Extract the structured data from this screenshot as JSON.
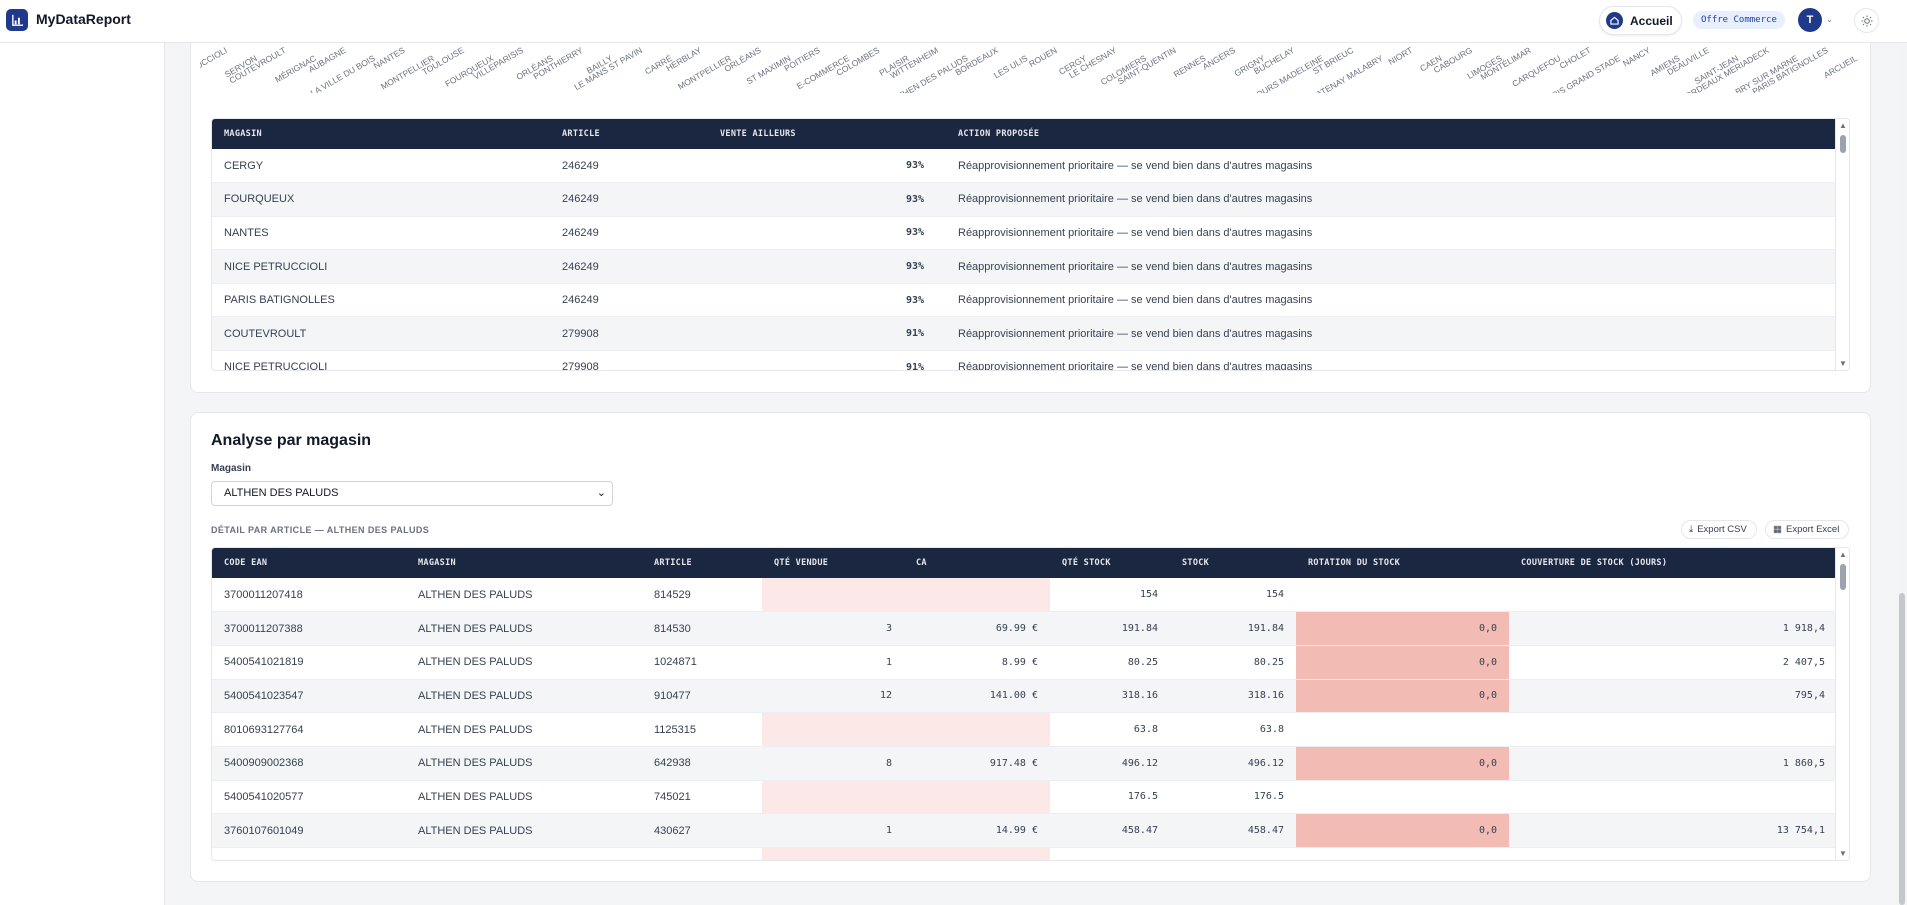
{
  "app": {
    "brand": "MyDataReport"
  },
  "header": {
    "home_label": "Accueil",
    "offer_label": "Offre Commerce",
    "avatar_initial": "T"
  },
  "chart_labels": [
    "NICE PETRUCCIOLI",
    "SERVON",
    "COUTEVROULT",
    "MÉRIGNAC",
    "AUBAGNE",
    "LA VILLE DU BOIS",
    "NANTES",
    "MONTPELLIER",
    "TOULOUSE",
    "FOURQUEUX",
    "VILLEPARISIS",
    "ORLÉANS",
    "PONTHIERRY",
    "BAILLY",
    "LE MANS ST PAVIN",
    "CARRÉ",
    "HERBLAY",
    "MONTPELLIER",
    "ORLÉANS",
    "ST MAXIMIN",
    "POITIERS",
    "E-COMMERCE",
    "COLOMBES",
    "PLAISIR",
    "WITTENHEIM",
    "ALTHEN DES PALUDS",
    "BORDEAUX",
    "LES ULIS",
    "ROUEN",
    "CERGY",
    "LE CHESNAY",
    "COLOMIERS",
    "SAINT-QUENTIN",
    "RENNES",
    "ANGERS",
    "GRIGNY",
    "BUCHELAY",
    "TOURS MADELEINE",
    "ST BRIEUC",
    "CHATENAY MALABRY",
    "NIORT",
    "CAEN",
    "CABOURG",
    "LIMOGES",
    "MONTÉLIMAR",
    "CARQUEFOU",
    "CHOLET",
    "PARIS GRAND STADE",
    "NANCY",
    "AMIENS",
    "DEAUVILLE",
    "SAINT-JEAN",
    "BORDEAUX MERIADECK",
    "BRY SUR MARNE",
    "PARIS BATIGNOLLES",
    "ARCUEIL"
  ],
  "suggestions": {
    "columns": [
      "Magasin",
      "Article",
      "Vente ailleurs",
      "Action proposée"
    ],
    "rows": [
      {
        "magasin": "CERGY",
        "article": "246249",
        "vente": "93%",
        "action": "Réapprovisionnement prioritaire — se vend bien dans d'autres magasins"
      },
      {
        "magasin": "FOURQUEUX",
        "article": "246249",
        "vente": "93%",
        "action": "Réapprovisionnement prioritaire — se vend bien dans d'autres magasins"
      },
      {
        "magasin": "NANTES",
        "article": "246249",
        "vente": "93%",
        "action": "Réapprovisionnement prioritaire — se vend bien dans d'autres magasins"
      },
      {
        "magasin": "NICE PETRUCCIOLI",
        "article": "246249",
        "vente": "93%",
        "action": "Réapprovisionnement prioritaire — se vend bien dans d'autres magasins"
      },
      {
        "magasin": "PARIS BATIGNOLLES",
        "article": "246249",
        "vente": "93%",
        "action": "Réapprovisionnement prioritaire — se vend bien dans d'autres magasins"
      },
      {
        "magasin": "COUTEVROULT",
        "article": "279908",
        "vente": "91%",
        "action": "Réapprovisionnement prioritaire — se vend bien dans d'autres magasins"
      },
      {
        "magasin": "NICE PETRUCCIOLI",
        "article": "279908",
        "vente": "91%",
        "action": "Réapprovisionnement prioritaire — se vend bien dans d'autres magasins"
      }
    ]
  },
  "analyse": {
    "title": "Analyse par magasin",
    "magasin_label": "Magasin",
    "magasin_selected": "ALTHEN DES PALUDS",
    "detail_label": "DÉTAIL PAR ARTICLE — ALTHEN DES PALUDS",
    "export_csv": "Export CSV",
    "export_excel": "Export Excel",
    "columns": [
      "Code EAN",
      "Magasin",
      "Article",
      "Qté vendue",
      "CA",
      "Qté stock",
      "Stock",
      "Rotation du stock",
      "Couverture de stock (jours)"
    ],
    "rows": [
      {
        "ean": "3700011207418",
        "magasin": "ALTHEN DES PALUDS",
        "article": "814529",
        "qte": "",
        "ca": "",
        "qte_stock": "154",
        "stock": "154",
        "rotation": "",
        "couverture": ""
      },
      {
        "ean": "3700011207388",
        "magasin": "ALTHEN DES PALUDS",
        "article": "814530",
        "qte": "3",
        "ca": "69.99 €",
        "qte_stock": "191.84",
        "stock": "191.84",
        "rotation": "0,0",
        "couverture": "1 918,4"
      },
      {
        "ean": "5400541021819",
        "magasin": "ALTHEN DES PALUDS",
        "article": "1024871",
        "qte": "1",
        "ca": "8.99 €",
        "qte_stock": "80.25",
        "stock": "80.25",
        "rotation": "0,0",
        "couverture": "2 407,5"
      },
      {
        "ean": "5400541023547",
        "magasin": "ALTHEN DES PALUDS",
        "article": "910477",
        "qte": "12",
        "ca": "141.00 €",
        "qte_stock": "318.16",
        "stock": "318.16",
        "rotation": "0,0",
        "couverture": "795,4"
      },
      {
        "ean": "8010693127764",
        "magasin": "ALTHEN DES PALUDS",
        "article": "1125315",
        "qte": "",
        "ca": "",
        "qte_stock": "63.8",
        "stock": "63.8",
        "rotation": "",
        "couverture": ""
      },
      {
        "ean": "5400909002368",
        "magasin": "ALTHEN DES PALUDS",
        "article": "642938",
        "qte": "8",
        "ca": "917.48 €",
        "qte_stock": "496.12",
        "stock": "496.12",
        "rotation": "0,0",
        "couverture": "1 860,5"
      },
      {
        "ean": "5400541020577",
        "magasin": "ALTHEN DES PALUDS",
        "article": "745021",
        "qte": "",
        "ca": "",
        "qte_stock": "176.5",
        "stock": "176.5",
        "rotation": "",
        "couverture": ""
      },
      {
        "ean": "3760107601049",
        "magasin": "ALTHEN DES PALUDS",
        "article": "430627",
        "qte": "1",
        "ca": "14.99 €",
        "qte_stock": "458.47",
        "stock": "458.47",
        "rotation": "0,0",
        "couverture": "13 754,1"
      }
    ]
  },
  "colors": {
    "navy": "#1b2640",
    "brand": "#1f3a8a",
    "hot_cell": "#f2bcb5",
    "empty_cell": "#fde8e8"
  }
}
